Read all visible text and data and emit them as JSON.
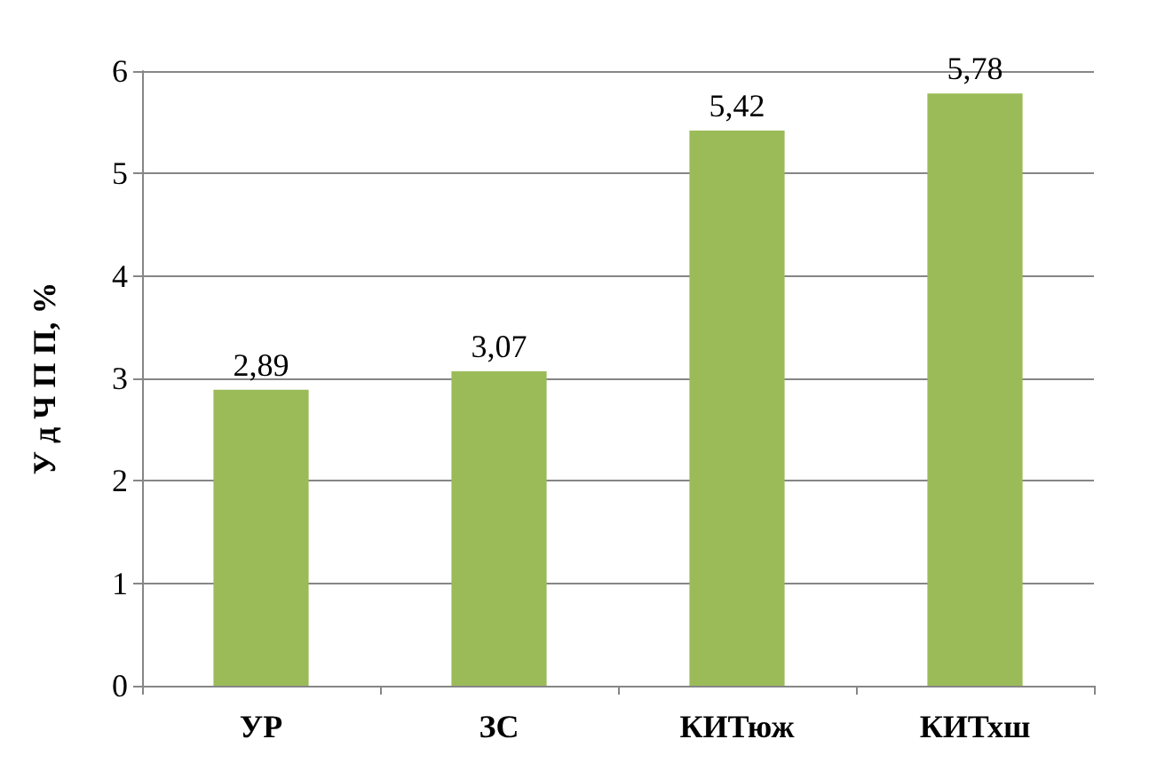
{
  "chart_data": {
    "type": "bar",
    "ylabel": "У д Ч П П, %",
    "categories": [
      "УР",
      "ЗС",
      "КИТюж",
      "КИТхш"
    ],
    "values": [
      2.89,
      3.07,
      5.42,
      5.78
    ],
    "value_labels": [
      "2,89",
      "3,07",
      "5,42",
      "5,78"
    ],
    "color": "#9bbb59",
    "ylim": [
      0,
      6
    ],
    "yticks": [
      0,
      1,
      2,
      3,
      4,
      5,
      6
    ],
    "grid": "y"
  }
}
